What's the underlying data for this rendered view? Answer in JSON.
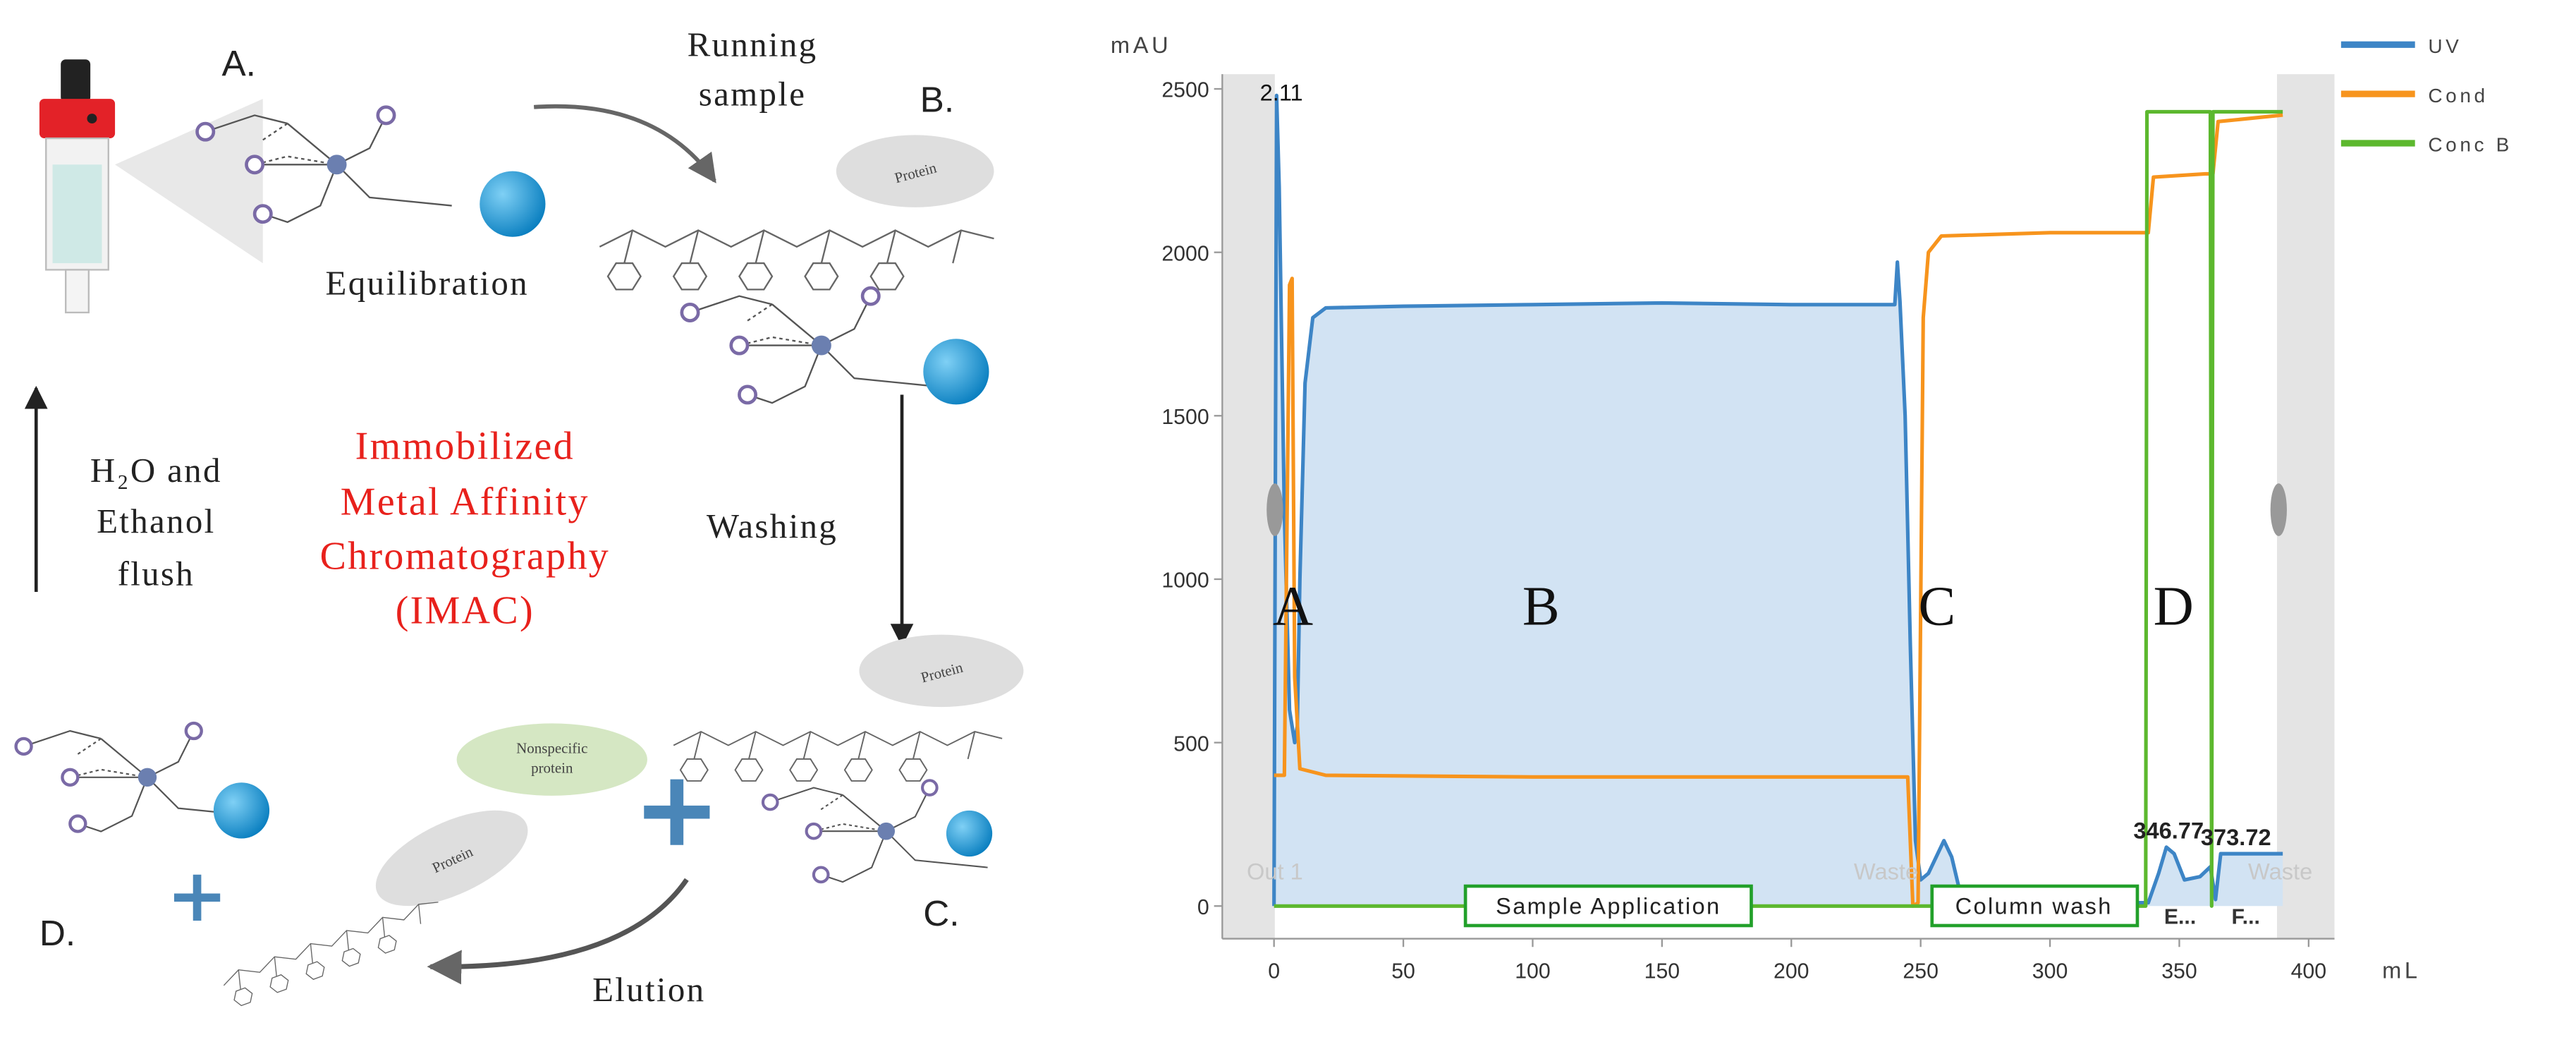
{
  "diagram": {
    "step_labels": [
      "A.",
      "B.",
      "C.",
      "D."
    ],
    "steps": {
      "equilibration": "Equilibration",
      "running": [
        "Running",
        "sample"
      ],
      "washing": "Washing",
      "elution": "Elution"
    },
    "flush": [
      "H₂O and",
      "Ethanol",
      "flush"
    ],
    "title": [
      "Immobilized",
      "Metal Affinity",
      "Chromatography",
      "(IMAC)"
    ],
    "protein": "Protein",
    "nonspecific": [
      "Nonspecific",
      "protein"
    ]
  },
  "chart_data": {
    "type": "line",
    "y_label": "mAU",
    "x_label": "mL",
    "xlim": [
      -20,
      410
    ],
    "ylim": [
      -100,
      2545
    ],
    "xticks": [
      0,
      50,
      100,
      150,
      200,
      250,
      300,
      350,
      400
    ],
    "yticks": [
      0,
      500,
      1000,
      1500,
      2000,
      2500
    ],
    "phases": [
      "A",
      "B",
      "C",
      "D"
    ],
    "annotations": [
      "Sample Application",
      "Column wash"
    ],
    "fractions": [
      "Out 1",
      "Waste",
      "Waste",
      "E...",
      "F..."
    ],
    "peak_labels": [
      2.11,
      346.77,
      373.72
    ],
    "series": [
      {
        "name": "UV",
        "color": "#3d85c6",
        "fill": "#d2e3f3",
        "x": [
          0,
          1,
          2,
          4,
          6,
          8,
          9,
          10,
          12,
          15,
          20,
          50,
          100,
          150,
          200,
          240,
          241,
          242,
          244,
          246,
          248,
          250,
          253,
          256,
          259,
          262,
          265,
          270,
          300,
          338,
          342,
          345,
          348,
          352,
          358,
          362,
          364,
          366,
          380,
          390
        ],
        "values": [
          0,
          2480,
          2200,
          1200,
          600,
          500,
          550,
          1000,
          1600,
          1800,
          1830,
          1835,
          1840,
          1845,
          1840,
          1840,
          1970,
          1850,
          1500,
          800,
          200,
          80,
          100,
          150,
          200,
          150,
          50,
          10,
          10,
          10,
          100,
          180,
          160,
          80,
          90,
          120,
          20,
          160,
          160,
          160
        ]
      },
      {
        "name": "Cond",
        "color": "#f7941d",
        "x": [
          0,
          4,
          6,
          7,
          8,
          10,
          20,
          100,
          200,
          245,
          247,
          249,
          251,
          253,
          258,
          300,
          338,
          340,
          360,
          363,
          365,
          390
        ],
        "values": [
          400,
          400,
          1900,
          1920,
          700,
          420,
          400,
          395,
          395,
          395,
          0,
          10,
          1800,
          2000,
          2050,
          2060,
          2060,
          2230,
          2240,
          2240,
          2400,
          2420
        ]
      },
      {
        "name": "Conc B",
        "color": "#5cb82e",
        "x": [
          0,
          337,
          337.5,
          362,
          362.5,
          363,
          390
        ],
        "values": [
          0,
          0,
          2430,
          2430,
          0,
          2430,
          2430
        ]
      }
    ]
  }
}
